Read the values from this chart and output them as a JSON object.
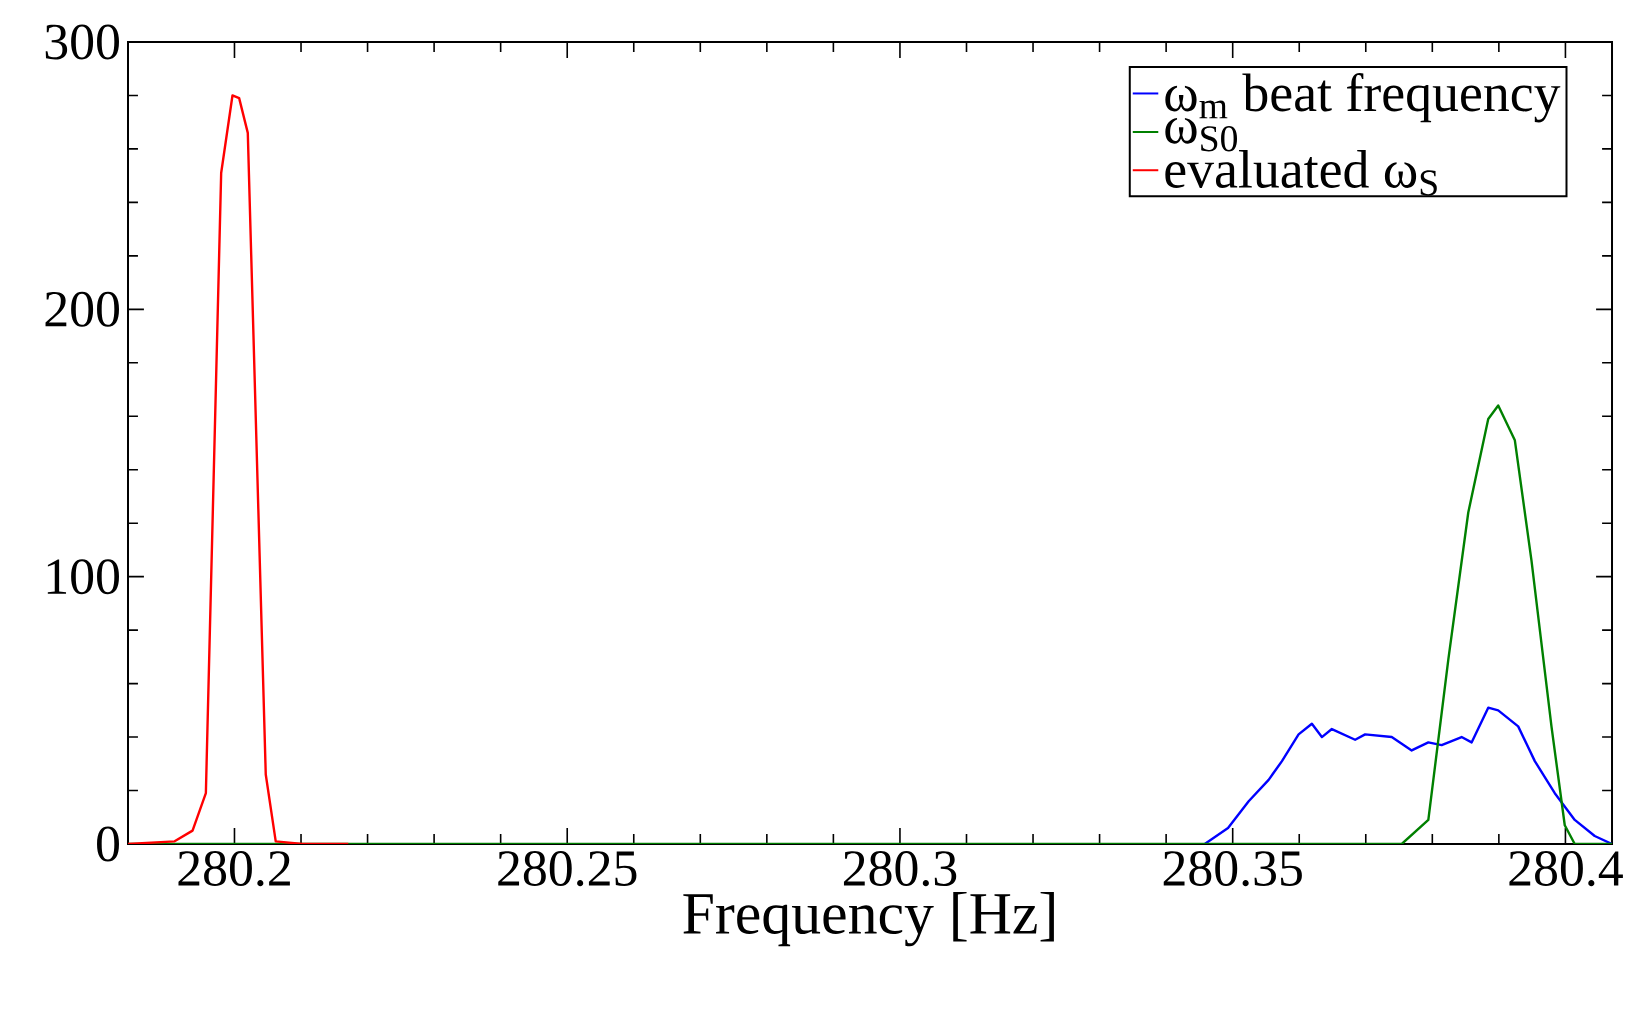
{
  "chart_data": {
    "type": "line",
    "xlabel": "Frequency [Hz]",
    "xlim": [
      280.184,
      280.407
    ],
    "ylim": [
      0,
      300
    ],
    "xticks": [
      280.2,
      280.25,
      280.3,
      280.35,
      280.4
    ],
    "yticks": [
      0,
      100,
      200,
      300
    ],
    "legend": "top right",
    "grid": false,
    "marker": "none",
    "line_style": "solid",
    "series": [
      {
        "name": "ω$_{m}$ beat frequency",
        "color": "#0000ff",
        "x": [
          280.3458,
          280.3493,
          280.3524,
          280.3554,
          280.3574,
          280.3599,
          280.3619,
          280.3634,
          280.3649,
          280.3684,
          280.3699,
          280.3739,
          280.3769,
          280.3794,
          280.3814,
          280.3844,
          280.3859,
          280.3884,
          280.3899,
          280.3929,
          280.3954,
          280.3984,
          280.4014,
          280.4044,
          280.407
        ],
        "values": [
          0,
          6,
          16,
          24,
          31,
          41,
          45,
          40,
          43,
          39,
          41,
          40,
          35,
          38,
          37,
          40,
          38,
          51,
          50,
          44,
          31,
          19,
          9,
          3,
          0
        ]
      },
      {
        "name": "ω$_{S0}$",
        "color": "#008000",
        "x": [
          280.184,
          280.3754,
          280.3794,
          280.3824,
          280.3854,
          280.3884,
          280.3899,
          280.3924,
          280.3949,
          280.3979,
          280.3999,
          280.4014,
          280.407
        ],
        "values": [
          0,
          0,
          9,
          69,
          124,
          159,
          164,
          151,
          106,
          44,
          7,
          0,
          0
        ]
      },
      {
        "name": "evaluated ω$_{S}$",
        "color": "#ff0000",
        "x": [
          280.184,
          280.191,
          280.1937,
          280.1957,
          280.198,
          280.1997,
          280.2007,
          280.202,
          280.2047,
          280.2062,
          280.2102,
          280.2171
        ],
        "values": [
          0,
          1,
          5,
          19,
          251,
          280,
          279,
          266,
          26,
          1,
          0,
          0
        ]
      }
    ]
  }
}
